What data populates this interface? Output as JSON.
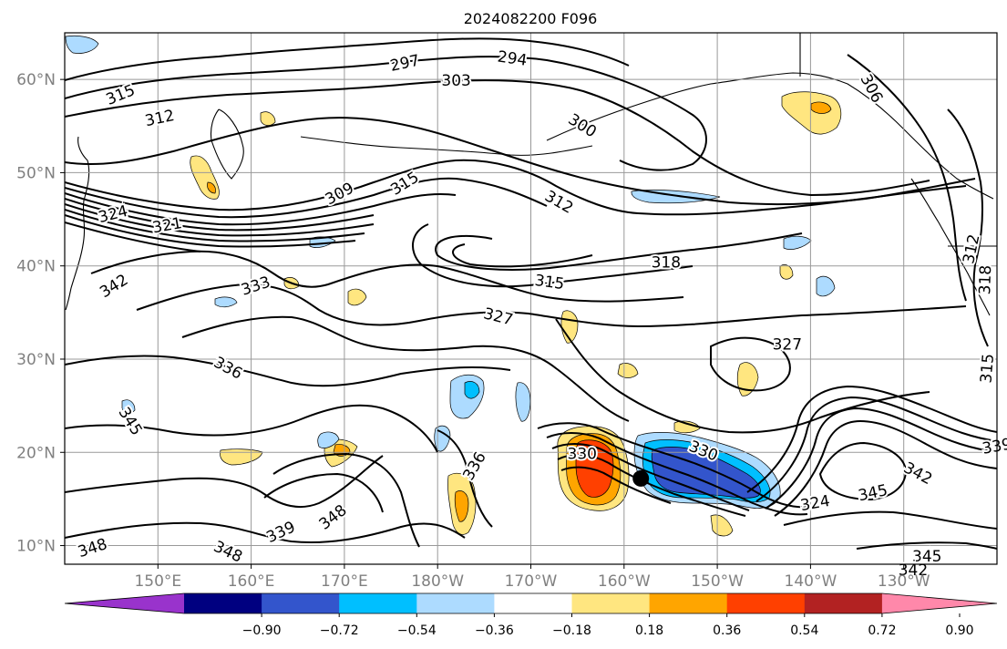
{
  "title": "2024082200 F096",
  "map": {
    "lon_ticks": [
      "150°E",
      "160°E",
      "170°E",
      "180°W",
      "170°W",
      "160°W",
      "150°W",
      "140°W",
      "130°W"
    ],
    "lat_ticks": [
      "60°N",
      "50°N",
      "40°N",
      "30°N",
      "20°N",
      "10°N"
    ],
    "lon_range": [
      140,
      240
    ],
    "lat_range": [
      8,
      65
    ],
    "gridlines": true,
    "center_marker": {
      "lon": 201.8,
      "lat": 17.2
    }
  },
  "contour_labels": [
    {
      "text": "297",
      "lon": 176.5,
      "lat": 61.7,
      "rot": -12
    },
    {
      "text": "294",
      "lon": 188.0,
      "lat": 62.2,
      "rot": 8
    },
    {
      "text": "303",
      "lon": 182.0,
      "lat": 59.8,
      "rot": 0
    },
    {
      "text": "300",
      "lon": 195.5,
      "lat": 55.0,
      "rot": 32
    },
    {
      "text": "306",
      "lon": 226.5,
      "lat": 59.0,
      "rot": 62
    },
    {
      "text": "315",
      "lon": 146.0,
      "lat": 58.3,
      "rot": -22
    },
    {
      "text": "312",
      "lon": 150.2,
      "lat": 55.8,
      "rot": -12
    },
    {
      "text": "312",
      "lon": 193.0,
      "lat": 46.8,
      "rot": 30
    },
    {
      "text": "309",
      "lon": 169.5,
      "lat": 47.7,
      "rot": -28
    },
    {
      "text": "315",
      "lon": 176.5,
      "lat": 48.8,
      "rot": -32
    },
    {
      "text": "324",
      "lon": 145.2,
      "lat": 45.5,
      "rot": -14
    },
    {
      "text": "321",
      "lon": 151.0,
      "lat": 44.3,
      "rot": -10
    },
    {
      "text": "318",
      "lon": 204.5,
      "lat": 40.3,
      "rot": 0
    },
    {
      "text": "315",
      "lon": 192.0,
      "lat": 38.2,
      "rot": 8
    },
    {
      "text": "312",
      "lon": 237.3,
      "lat": 41.8,
      "rot": -78
    },
    {
      "text": "318",
      "lon": 238.8,
      "lat": 38.5,
      "rot": -88
    },
    {
      "text": "342",
      "lon": 145.3,
      "lat": 37.8,
      "rot": -32
    },
    {
      "text": "333",
      "lon": 160.5,
      "lat": 37.8,
      "rot": -18
    },
    {
      "text": "327",
      "lon": 186.5,
      "lat": 34.5,
      "rot": 14
    },
    {
      "text": "327",
      "lon": 217.5,
      "lat": 31.5,
      "rot": 0
    },
    {
      "text": "315",
      "lon": 239.0,
      "lat": 29.0,
      "rot": -85
    },
    {
      "text": "336",
      "lon": 157.5,
      "lat": 29.0,
      "rot": 28
    },
    {
      "text": "345",
      "lon": 147.0,
      "lat": 23.3,
      "rot": 58
    },
    {
      "text": "339",
      "lon": 240.0,
      "lat": 20.6,
      "rot": -10
    },
    {
      "text": "336",
      "lon": 184.0,
      "lat": 18.5,
      "rot": -60
    },
    {
      "text": "330",
      "lon": 195.5,
      "lat": 19.8,
      "rot": 0
    },
    {
      "text": "330",
      "lon": 208.5,
      "lat": 20.1,
      "rot": 22
    },
    {
      "text": "342",
      "lon": 231.5,
      "lat": 17.7,
      "rot": 28
    },
    {
      "text": "345",
      "lon": 226.7,
      "lat": 15.6,
      "rot": -12
    },
    {
      "text": "324",
      "lon": 220.5,
      "lat": 14.5,
      "rot": -10
    },
    {
      "text": "339",
      "lon": 163.2,
      "lat": 11.4,
      "rot": -25
    },
    {
      "text": "348",
      "lon": 168.8,
      "lat": 13.0,
      "rot": -38
    },
    {
      "text": "348",
      "lon": 143.0,
      "lat": 9.7,
      "rot": -18
    },
    {
      "text": "348",
      "lon": 157.5,
      "lat": 9.3,
      "rot": 25
    },
    {
      "text": "345",
      "lon": 232.5,
      "lat": 8.8,
      "rot": 0
    },
    {
      "text": "342",
      "lon": 231.0,
      "lat": 7.3,
      "rot": 0
    }
  ],
  "colorbar": {
    "ticks": [
      "−0.90",
      "−0.72",
      "−0.54",
      "−0.36",
      "−0.18",
      "0.18",
      "0.36",
      "0.54",
      "0.72",
      "0.90"
    ],
    "colors": [
      "#9933CC",
      "#000080",
      "#3355CC",
      "#00BFFF",
      "#ADDBFF",
      "#FFFFFF",
      "#FFE680",
      "#FFA500",
      "#FF4000",
      "#B22222",
      "#FF88AA"
    ]
  }
}
